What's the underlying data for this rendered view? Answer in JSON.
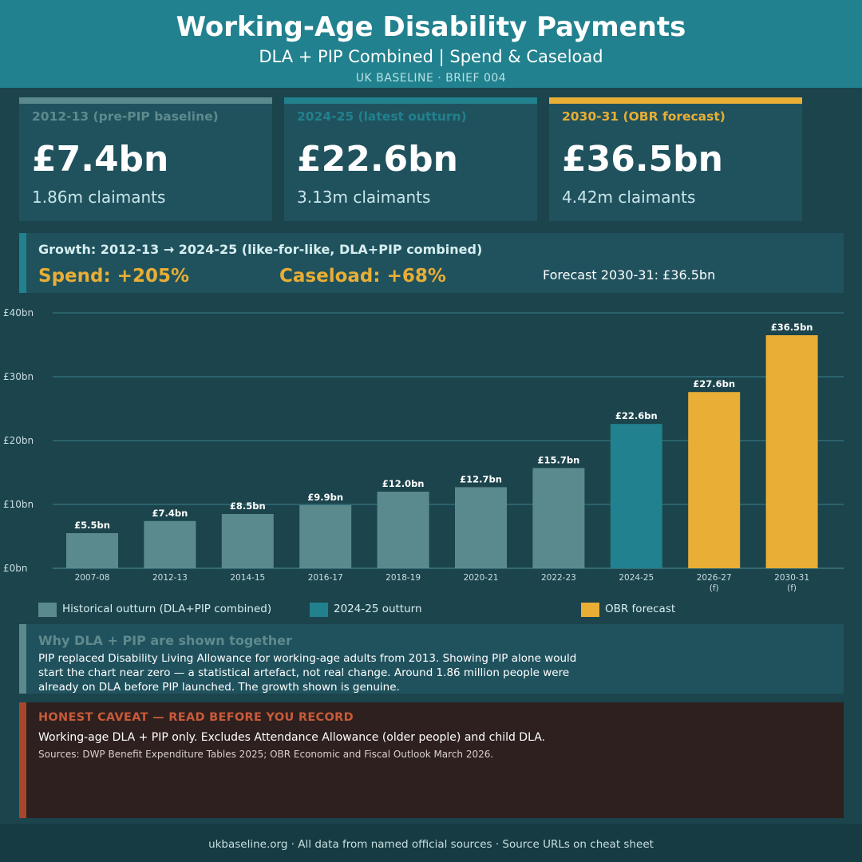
{
  "header": {
    "title": "Working-Age Disability Payments",
    "subtitle": "DLA + PIP Combined  |  Spend & Caseload",
    "kicker": "UK BASELINE  ·  BRIEF 004"
  },
  "cards": [
    {
      "label": "2012-13  (pre-PIP baseline)",
      "value": "£7.4bn",
      "sub": "1.86m claimants",
      "color": "#5b8a8e"
    },
    {
      "label": "2024-25  (latest outturn)",
      "value": "£22.6bn",
      "sub": "3.13m claimants",
      "color": "#21818e"
    },
    {
      "label": "2030-31  (OBR forecast)",
      "value": "£36.5bn",
      "sub": "4.42m claimants",
      "color": "#e8ae35"
    }
  ],
  "growth": {
    "title": "Growth: 2012-13 → 2024-25  (like-for-like, DLA+PIP combined)",
    "spend": "Spend:  +205%",
    "caseload": "Caseload:  +68%",
    "forecast": "Forecast 2030-31:  £36.5bn"
  },
  "chart_data": {
    "type": "bar",
    "categories": [
      "2007-08",
      "2012-13",
      "2014-15",
      "2016-17",
      "2018-19",
      "2020-21",
      "2022-23",
      "2024-25",
      "2026-27",
      "2030-31"
    ],
    "category_notes": [
      "",
      "",
      "",
      "",
      "",
      "",
      "",
      "",
      "(f)",
      "(f)"
    ],
    "values": [
      5.5,
      7.4,
      8.5,
      9.9,
      12.0,
      12.7,
      15.7,
      22.6,
      27.6,
      36.5
    ],
    "value_labels": [
      "£5.5bn",
      "£7.4bn",
      "£8.5bn",
      "£9.9bn",
      "£12.0bn",
      "£12.7bn",
      "£15.7bn",
      "£22.6bn",
      "£27.6bn",
      "£36.5bn"
    ],
    "bar_groups": [
      "historical",
      "historical",
      "historical",
      "historical",
      "historical",
      "historical",
      "historical",
      "latest",
      "forecast",
      "forecast"
    ],
    "group_colors": {
      "historical": "#5b8a8e",
      "latest": "#21818e",
      "forecast": "#e8ae35"
    },
    "yticks": [
      0,
      10,
      20,
      30,
      40
    ],
    "ytick_labels": [
      "£0bn",
      "£10bn",
      "£20bn",
      "£30bn",
      "£40bn"
    ],
    "ylim": [
      0,
      40
    ],
    "grid": true
  },
  "legend": [
    {
      "label": "Historical outturn (DLA+PIP combined)",
      "color": "#5b8a8e"
    },
    {
      "label": "2024-25 outturn",
      "color": "#21818e"
    },
    {
      "label": "OBR forecast",
      "color": "#e8ae35"
    }
  ],
  "why": {
    "title": "Why DLA + PIP are shown together",
    "body": "PIP replaced Disability Living Allowance for working-age adults from 2013. Showing PIP alone would start the chart near zero — a statistical artefact, not real change. Around 1.86 million people were already on DLA before PIP launched. The growth shown is genuine."
  },
  "caveat": {
    "title": "HONEST CAVEAT — READ BEFORE YOU RECORD",
    "line": "Working-age DLA + PIP only. Excludes Attendance Allowance (older people) and child DLA.",
    "sources": "Sources: DWP Benefit Expenditure Tables 2025; OBR Economic and Fiscal Outlook March 2026."
  },
  "footer": "ukbaseline.org  ·  All data from named official sources  ·  Source URLs on cheat sheet"
}
